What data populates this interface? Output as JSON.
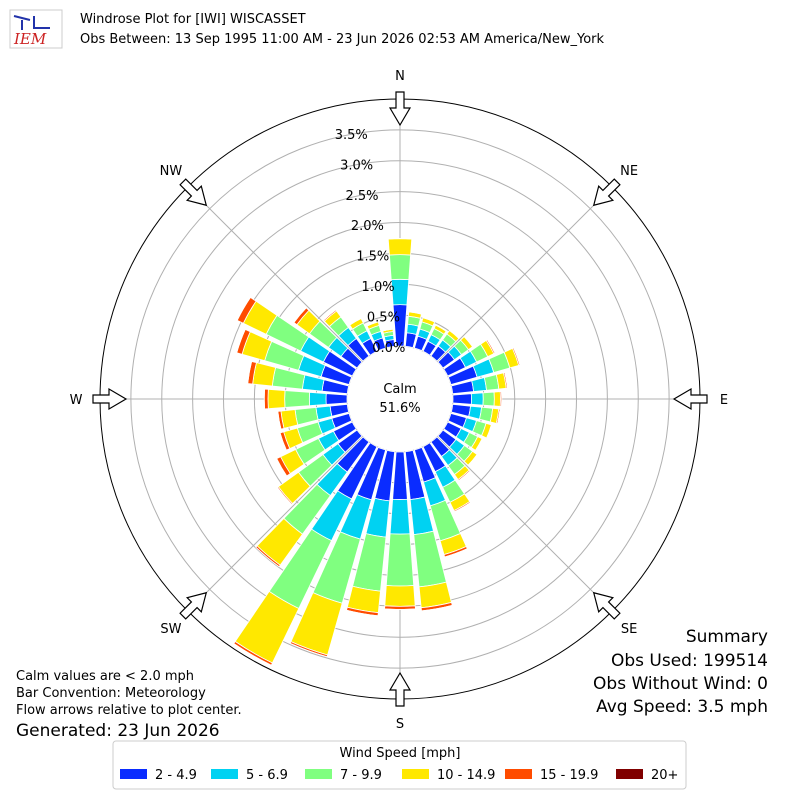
{
  "chart_data": {
    "type": "windrose",
    "logo_text": "IEM",
    "title": "Windrose Plot for [IWI] WISCASSET",
    "subtitle": "Obs Between: 13 Sep 1995 11:00 AM - 23 Jun 2026 02:53 AM America/New_York",
    "compass_labels": [
      "N",
      "NE",
      "E",
      "SE",
      "S",
      "SW",
      "W",
      "NW"
    ],
    "x": [
      0,
      10,
      20,
      30,
      40,
      50,
      60,
      70,
      80,
      90,
      100,
      110,
      120,
      130,
      140,
      150,
      160,
      170,
      180,
      190,
      200,
      210,
      220,
      230,
      240,
      250,
      260,
      270,
      280,
      290,
      300,
      310,
      320,
      330,
      340,
      350
    ],
    "ylim": [
      0,
      4.0
    ],
    "yticks": [
      {
        "value": 0,
        "label": "0.0%"
      },
      {
        "value": 0.5,
        "label": "0.5%"
      },
      {
        "value": 1.0,
        "label": "1.0%"
      },
      {
        "value": 1.5,
        "label": "1.5%"
      },
      {
        "value": 2.0,
        "label": "2.0%"
      },
      {
        "value": 2.5,
        "label": "2.5%"
      },
      {
        "value": 3.0,
        "label": "3.0%"
      },
      {
        "value": 3.5,
        "label": "3.5%"
      }
    ],
    "grid": true,
    "calm_label": "Calm",
    "calm_value_label": "51.6%",
    "legend_title": "Wind Speed [mph]",
    "series": [
      {
        "name": "2 - 4.9",
        "color": "#0a2cff",
        "values": [
          0.67,
          0.22,
          0.2,
          0.18,
          0.2,
          0.23,
          0.32,
          0.44,
          0.34,
          0.3,
          0.29,
          0.26,
          0.24,
          0.26,
          0.29,
          0.45,
          0.54,
          0.78,
          0.77,
          0.8,
          0.84,
          0.94,
          0.6,
          0.38,
          0.34,
          0.29,
          0.28,
          0.34,
          0.41,
          0.47,
          0.52,
          0.32,
          0.35,
          0.23,
          0.17,
          0.11
        ]
      },
      {
        "name": "5 - 6.9",
        "color": "#00d2f2",
        "values": [
          0.41,
          0.14,
          0.12,
          0.12,
          0.12,
          0.14,
          0.2,
          0.28,
          0.21,
          0.19,
          0.18,
          0.17,
          0.15,
          0.17,
          0.18,
          0.28,
          0.4,
          0.57,
          0.56,
          0.59,
          0.66,
          0.75,
          0.47,
          0.3,
          0.27,
          0.23,
          0.23,
          0.27,
          0.32,
          0.38,
          0.41,
          0.25,
          0.22,
          0.14,
          0.11,
          0.07
        ]
      },
      {
        "name": "7 - 9.9",
        "color": "#80ff80",
        "values": [
          0.4,
          0.13,
          0.12,
          0.11,
          0.12,
          0.14,
          0.2,
          0.27,
          0.2,
          0.18,
          0.18,
          0.16,
          0.15,
          0.16,
          0.18,
          0.27,
          0.59,
          0.85,
          0.84,
          0.88,
          1.08,
          1.22,
          0.77,
          0.49,
          0.41,
          0.35,
          0.34,
          0.4,
          0.49,
          0.57,
          0.62,
          0.38,
          0.21,
          0.14,
          0.1,
          0.06
        ]
      },
      {
        "name": "10 - 14.9",
        "color": "#ffe800",
        "values": [
          0.26,
          0.07,
          0.07,
          0.06,
          0.07,
          0.08,
          0.11,
          0.15,
          0.12,
          0.1,
          0.1,
          0.09,
          0.08,
          0.09,
          0.1,
          0.15,
          0.23,
          0.34,
          0.33,
          0.35,
          0.87,
          0.98,
          0.62,
          0.4,
          0.27,
          0.23,
          0.23,
          0.27,
          0.32,
          0.38,
          0.41,
          0.25,
          0.12,
          0.08,
          0.06,
          0.04
        ]
      },
      {
        "name": "15 - 19.9",
        "color": "#ff4c00",
        "values": [
          0,
          0.01,
          0.01,
          0.01,
          0.01,
          0.01,
          0.02,
          0.02,
          0.02,
          0.02,
          0.02,
          0.01,
          0.01,
          0.01,
          0.02,
          0.02,
          0.04,
          0.05,
          0.05,
          0.05,
          0.03,
          0.04,
          0.03,
          0.02,
          0.07,
          0.06,
          0.05,
          0.06,
          0.08,
          0.09,
          0.11,
          0.06,
          0.02,
          0.01,
          0.01,
          0
        ]
      },
      {
        "name": "20+",
        "color": "#800000",
        "values": [
          0,
          0,
          0,
          0,
          0,
          0,
          0,
          0,
          0,
          0,
          0,
          0,
          0,
          0,
          0,
          0,
          0,
          0,
          0,
          0,
          0,
          0,
          0,
          0,
          0,
          0,
          0,
          0,
          0,
          0,
          0,
          0,
          0,
          0,
          0,
          0
        ]
      }
    ],
    "notes": [
      "Calm values are < 2.0 mph",
      "Bar Convention: Meteorology",
      "Flow arrows relative to plot center."
    ],
    "generated": "Generated: 23 Jun 2026",
    "summary": [
      "Summary",
      "Obs Used: 199514",
      "Obs Without Wind: 0",
      "Avg Speed: 3.5 mph"
    ]
  }
}
